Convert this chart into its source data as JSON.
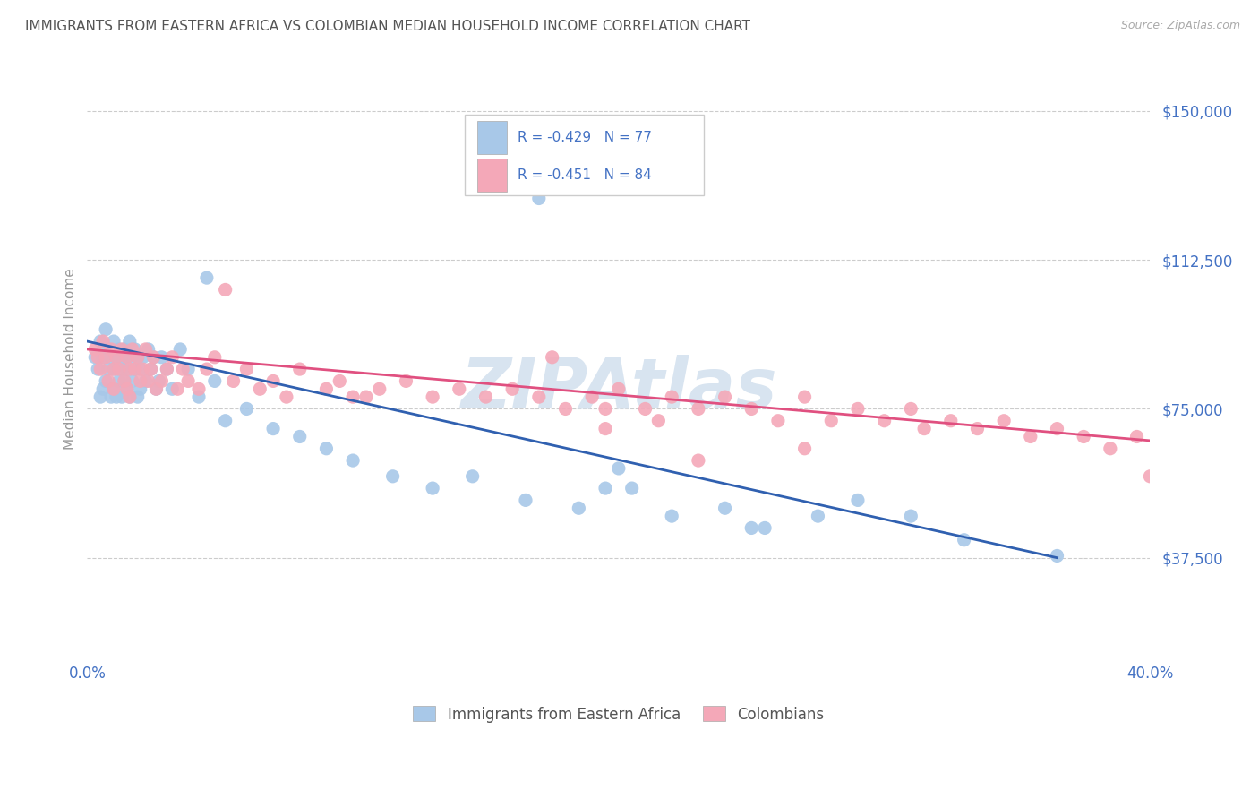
{
  "title": "IMMIGRANTS FROM EASTERN AFRICA VS COLOMBIAN MEDIAN HOUSEHOLD INCOME CORRELATION CHART",
  "source": "Source: ZipAtlas.com",
  "ylabel": "Median Household Income",
  "xlim": [
    0.0,
    0.4
  ],
  "ylim": [
    12500,
    162500
  ],
  "ytick_vals": [
    37500,
    75000,
    112500,
    150000
  ],
  "xticks": [
    0.0,
    0.05,
    0.1,
    0.15,
    0.2,
    0.25,
    0.3,
    0.35,
    0.4
  ],
  "blue_R": -0.429,
  "blue_N": 77,
  "pink_R": -0.451,
  "pink_N": 84,
  "blue_color": "#a8c8e8",
  "pink_color": "#f4a8b8",
  "blue_line_color": "#3060b0",
  "pink_line_color": "#e05080",
  "tick_color": "#4472c4",
  "grid_color": "#cccccc",
  "watermark": "ZIPAtlas",
  "watermark_color": "#d8e4f0",
  "legend_label_blue": "Immigrants from Eastern Africa",
  "legend_label_pink": "Colombians",
  "blue_line_x0": 0.0,
  "blue_line_y0": 92000,
  "blue_line_x1": 0.365,
  "blue_line_y1": 37500,
  "pink_line_x0": 0.0,
  "pink_line_y0": 90000,
  "pink_line_x1": 0.4,
  "pink_line_y1": 67000,
  "blue_scatter_x": [
    0.003,
    0.004,
    0.005,
    0.005,
    0.006,
    0.006,
    0.007,
    0.007,
    0.008,
    0.008,
    0.009,
    0.009,
    0.01,
    0.01,
    0.01,
    0.011,
    0.011,
    0.012,
    0.012,
    0.013,
    0.013,
    0.013,
    0.014,
    0.014,
    0.015,
    0.015,
    0.015,
    0.016,
    0.016,
    0.017,
    0.017,
    0.018,
    0.018,
    0.019,
    0.019,
    0.02,
    0.02,
    0.021,
    0.022,
    0.023,
    0.024,
    0.025,
    0.026,
    0.027,
    0.028,
    0.03,
    0.032,
    0.035,
    0.038,
    0.042,
    0.048,
    0.052,
    0.06,
    0.07,
    0.08,
    0.09,
    0.1,
    0.115,
    0.13,
    0.145,
    0.165,
    0.185,
    0.205,
    0.22,
    0.24,
    0.255,
    0.275,
    0.15,
    0.17,
    0.2,
    0.29,
    0.31,
    0.365,
    0.045,
    0.195,
    0.25,
    0.33
  ],
  "blue_scatter_y": [
    88000,
    85000,
    92000,
    78000,
    88000,
    80000,
    95000,
    82000,
    90000,
    85000,
    88000,
    78000,
    92000,
    85000,
    80000,
    88000,
    78000,
    90000,
    82000,
    88000,
    85000,
    78000,
    90000,
    82000,
    88000,
    85000,
    80000,
    92000,
    78000,
    88000,
    82000,
    90000,
    85000,
    88000,
    78000,
    85000,
    80000,
    88000,
    82000,
    90000,
    85000,
    88000,
    80000,
    82000,
    88000,
    85000,
    80000,
    90000,
    85000,
    78000,
    82000,
    72000,
    75000,
    70000,
    68000,
    65000,
    62000,
    58000,
    55000,
    58000,
    52000,
    50000,
    55000,
    48000,
    50000,
    45000,
    48000,
    135000,
    128000,
    60000,
    52000,
    48000,
    38000,
    108000,
    55000,
    45000,
    42000
  ],
  "pink_scatter_x": [
    0.003,
    0.004,
    0.005,
    0.006,
    0.007,
    0.008,
    0.009,
    0.01,
    0.01,
    0.011,
    0.012,
    0.013,
    0.014,
    0.015,
    0.015,
    0.016,
    0.016,
    0.017,
    0.018,
    0.019,
    0.02,
    0.021,
    0.022,
    0.023,
    0.024,
    0.025,
    0.026,
    0.028,
    0.03,
    0.032,
    0.034,
    0.036,
    0.038,
    0.042,
    0.045,
    0.048,
    0.052,
    0.055,
    0.06,
    0.065,
    0.07,
    0.075,
    0.08,
    0.09,
    0.095,
    0.1,
    0.11,
    0.12,
    0.13,
    0.14,
    0.15,
    0.16,
    0.17,
    0.18,
    0.19,
    0.2,
    0.21,
    0.22,
    0.23,
    0.24,
    0.25,
    0.26,
    0.27,
    0.28,
    0.29,
    0.3,
    0.31,
    0.315,
    0.325,
    0.335,
    0.345,
    0.355,
    0.365,
    0.375,
    0.385,
    0.395,
    0.175,
    0.215,
    0.105,
    0.195,
    0.27,
    0.195,
    0.23,
    0.4
  ],
  "pink_scatter_y": [
    90000,
    88000,
    85000,
    92000,
    88000,
    82000,
    90000,
    85000,
    80000,
    88000,
    85000,
    90000,
    82000,
    88000,
    80000,
    85000,
    78000,
    90000,
    85000,
    88000,
    82000,
    85000,
    90000,
    82000,
    85000,
    88000,
    80000,
    82000,
    85000,
    88000,
    80000,
    85000,
    82000,
    80000,
    85000,
    88000,
    105000,
    82000,
    85000,
    80000,
    82000,
    78000,
    85000,
    80000,
    82000,
    78000,
    80000,
    82000,
    78000,
    80000,
    78000,
    80000,
    78000,
    75000,
    78000,
    80000,
    75000,
    78000,
    75000,
    78000,
    75000,
    72000,
    78000,
    72000,
    75000,
    72000,
    75000,
    70000,
    72000,
    70000,
    72000,
    68000,
    70000,
    68000,
    65000,
    68000,
    88000,
    72000,
    78000,
    70000,
    65000,
    75000,
    62000,
    58000
  ]
}
